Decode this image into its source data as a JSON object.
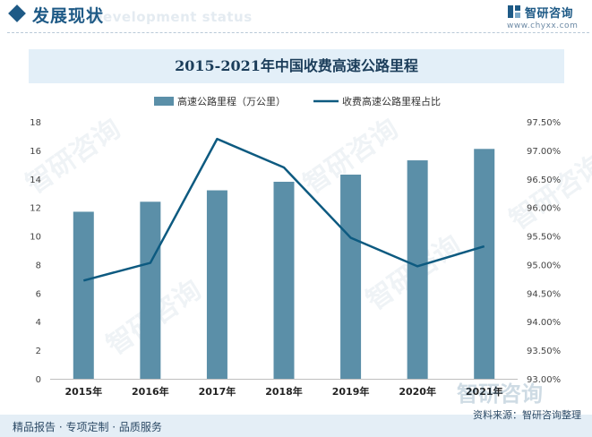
{
  "header": {
    "title": "发展现状",
    "ghost_text": "Development status",
    "brand_name": "智研咨询",
    "brand_url": "www.chyxx.com"
  },
  "chart_data": {
    "type": "bar+line",
    "title": "2015-2021年中国收费高速公路里程",
    "categories": [
      "2015年",
      "2016年",
      "2017年",
      "2018年",
      "2019年",
      "2020年",
      "2021年"
    ],
    "series": [
      {
        "name": "高速公路里程（万公里）",
        "type": "bar",
        "axis": "left",
        "values": [
          11.7,
          12.4,
          13.2,
          13.8,
          14.3,
          15.3,
          16.1
        ],
        "color": "#5b8fa8"
      },
      {
        "name": "收费高速公路里程占比",
        "type": "line",
        "axis": "right",
        "values": [
          94.72,
          95.03,
          97.2,
          96.7,
          95.47,
          94.97,
          95.32
        ],
        "color": "#0d5a80"
      }
    ],
    "y_left": {
      "min": 0,
      "max": 18,
      "step": 2,
      "ticks": [
        "0",
        "2",
        "4",
        "6",
        "8",
        "10",
        "12",
        "14",
        "16",
        "18"
      ]
    },
    "y_right": {
      "min": 93.0,
      "max": 97.5,
      "step": 0.5,
      "ticks": [
        "93.00%",
        "93.50%",
        "94.00%",
        "94.50%",
        "95.00%",
        "95.50%",
        "96.00%",
        "96.50%",
        "97.00%",
        "97.50%"
      ]
    },
    "grid": false,
    "legend_position": "top"
  },
  "footer": {
    "left": "精品报告 · 专项定制 · 品质服务",
    "source": "资料来源：智研咨询整理"
  },
  "watermarks": {
    "text": "智研咨询"
  }
}
